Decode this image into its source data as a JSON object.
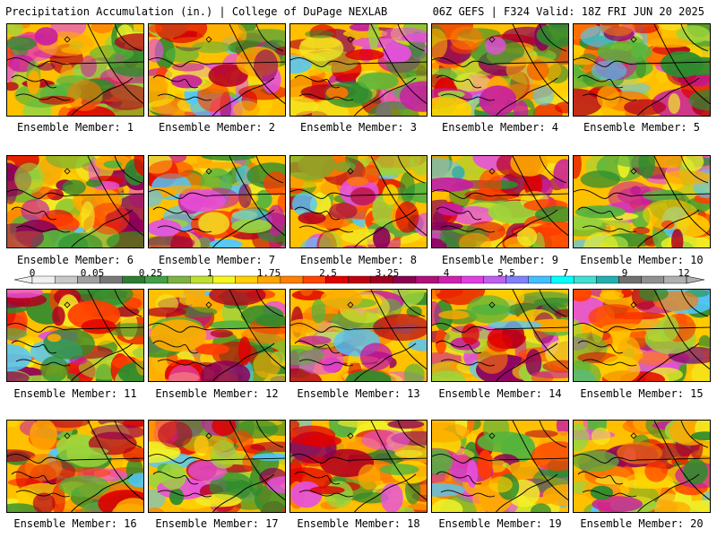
{
  "header": {
    "left": "Precipitation Accumulation (in.) | College of DuPage NEXLAB",
    "right": "06Z GEFS | F324 Valid: 18Z FRI JUN 20 2025"
  },
  "panel_label_prefix": "Ensemble Member:",
  "members": [
    "1",
    "2",
    "3",
    "4",
    "5",
    "6",
    "7",
    "8",
    "9",
    "10",
    "11",
    "12",
    "13",
    "14",
    "15",
    "16",
    "17",
    "18",
    "19",
    "20"
  ],
  "colorbar": {
    "labels": [
      "0",
      "0.05",
      "0.25",
      "1",
      "1.75",
      "2.5",
      "3.25",
      "4",
      "5.5",
      "7",
      "9",
      "12"
    ],
    "colors": [
      "#f0f0f0",
      "#c8c8c8",
      "#a0a0a0",
      "#787878",
      "#2e7d32",
      "#43a047",
      "#7cb342",
      "#c0e030",
      "#f5f520",
      "#ffd000",
      "#ffa500",
      "#ff7f00",
      "#ff4500",
      "#e00000",
      "#c00010",
      "#a00020",
      "#8b0050",
      "#b0107a",
      "#d020b0",
      "#e040e0",
      "#c060f0",
      "#8080ff",
      "#40c0ff",
      "#00ffff",
      "#40e0d0",
      "#20b0b0",
      "#707070",
      "#909090",
      "#b0b0b0"
    ]
  }
}
